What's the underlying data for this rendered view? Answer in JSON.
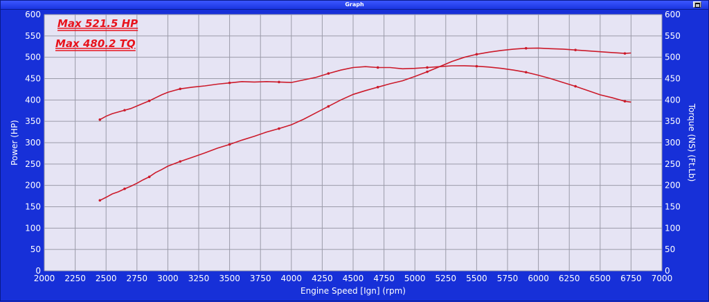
{
  "window": {
    "title": "Graph"
  },
  "chart_data": {
    "type": "line",
    "xlabel": "Engine Speed [Ign] (rpm)",
    "ylabel": "Power (HP)",
    "y2label": "Torque (NS) (Ft.Lb)",
    "xlim": [
      2000,
      7000
    ],
    "ylim": [
      0,
      600
    ],
    "y2lim": [
      0,
      600
    ],
    "x_ticks": [
      2000,
      2250,
      2500,
      2750,
      3000,
      3250,
      3500,
      3750,
      4000,
      4250,
      4500,
      4750,
      5000,
      5250,
      5500,
      5750,
      6000,
      6250,
      6500,
      6750,
      7000
    ],
    "y_ticks": [
      0,
      50,
      100,
      150,
      200,
      250,
      300,
      350,
      400,
      450,
      500,
      550,
      600
    ],
    "grid": true,
    "background_color": "#e6e4f4",
    "grid_color": "#9a9aa8",
    "line_color": "#cc1a2a",
    "annotations": [
      "Max 521.5 HP",
      "Max 480.2 TQ"
    ],
    "series": [
      {
        "axis": "left",
        "x": [
          2450,
          2500,
          2550,
          2600,
          2650,
          2700,
          2750,
          2800,
          2850,
          2900,
          2950,
          3000,
          3100,
          3200,
          3300,
          3400,
          3500,
          3600,
          3700,
          3800,
          3900,
          4000,
          4100,
          4200,
          4300,
          4400,
          4500,
          4600,
          4700,
          4800,
          4900,
          5000,
          5100,
          5200,
          5300,
          5400,
          5500,
          5600,
          5700,
          5800,
          5900,
          6000,
          6100,
          6200,
          6300,
          6400,
          6500,
          6600,
          6700,
          6750
        ],
        "values": [
          165,
          172,
          180,
          185,
          192,
          198,
          205,
          213,
          220,
          230,
          237,
          245,
          256,
          266,
          276,
          287,
          296,
          306,
          315,
          325,
          333,
          342,
          355,
          370,
          385,
          400,
          413,
          422,
          430,
          438,
          445,
          455,
          466,
          478,
          490,
          500,
          507,
          512,
          516,
          519,
          521,
          521.5,
          520,
          519,
          517,
          515,
          513,
          511,
          509,
          510
        ]
      },
      {
        "axis": "right",
        "x": [
          2450,
          2500,
          2550,
          2600,
          2650,
          2700,
          2750,
          2800,
          2850,
          2900,
          2950,
          3000,
          3100,
          3200,
          3300,
          3400,
          3500,
          3600,
          3700,
          3800,
          3900,
          4000,
          4100,
          4200,
          4300,
          4400,
          4500,
          4600,
          4700,
          4800,
          4900,
          5000,
          5100,
          5200,
          5300,
          5400,
          5500,
          5600,
          5700,
          5800,
          5900,
          6000,
          6100,
          6200,
          6300,
          6400,
          6500,
          6600,
          6700,
          6750
        ],
        "values": [
          354,
          362,
          368,
          372,
          376,
          380,
          386,
          392,
          398,
          405,
          412,
          418,
          426,
          430,
          433,
          437,
          440,
          443,
          442,
          443,
          442,
          441,
          447,
          453,
          462,
          470,
          476,
          478,
          476,
          476,
          473,
          474,
          476,
          478,
          480,
          480.2,
          479,
          477,
          474,
          470,
          465,
          458,
          450,
          441,
          432,
          422,
          412,
          405,
          397,
          395
        ]
      }
    ]
  }
}
